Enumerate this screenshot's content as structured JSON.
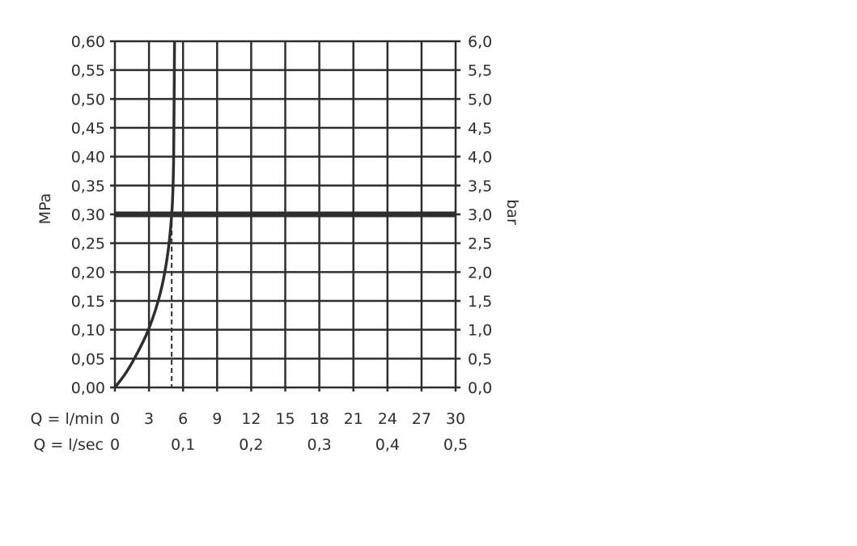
{
  "chart_data": {
    "type": "line",
    "title": "",
    "ylabel_left": "MPa",
    "ylabel_right": "bar",
    "xlabel_row1": "Q = l/min",
    "xlabel_row2": "Q = l/sec",
    "xlim": [
      0,
      30
    ],
    "ylim": [
      0,
      0.6
    ],
    "grid": true,
    "x_ticks_lmin": [
      "0",
      "3",
      "6",
      "9",
      "12",
      "15",
      "18",
      "21",
      "24",
      "27",
      "30"
    ],
    "x_ticks_lsec": [
      {
        "at": 0,
        "label": "0"
      },
      {
        "at": 6,
        "label": "0,1"
      },
      {
        "at": 12,
        "label": "0,2"
      },
      {
        "at": 18,
        "label": "0,3"
      },
      {
        "at": 24,
        "label": "0,4"
      },
      {
        "at": 30,
        "label": "0,5"
      }
    ],
    "y_ticks_left": [
      "0,00",
      "0,05",
      "0,10",
      "0,15",
      "0,20",
      "0,25",
      "0,30",
      "0,35",
      "0,40",
      "0,45",
      "0,50",
      "0,55",
      "0,60"
    ],
    "y_ticks_right": [
      "0,0",
      "0,5",
      "1,0",
      "1,5",
      "2,0",
      "2,5",
      "3,0",
      "3,5",
      "4,0",
      "4,5",
      "5,0",
      "5,5",
      "6,0"
    ],
    "series": [
      {
        "x": [
          0,
          1,
          2,
          3,
          4,
          4.6,
          5.0,
          5.15,
          5.2,
          5.25
        ],
        "y": [
          0,
          0.025,
          0.06,
          0.1,
          0.16,
          0.22,
          0.29,
          0.36,
          0.45,
          0.6
        ]
      }
    ],
    "reference_line_y": 0.3,
    "reference_dashed_x": 5.0,
    "colors": {
      "ink": "#2e2e2e"
    }
  }
}
